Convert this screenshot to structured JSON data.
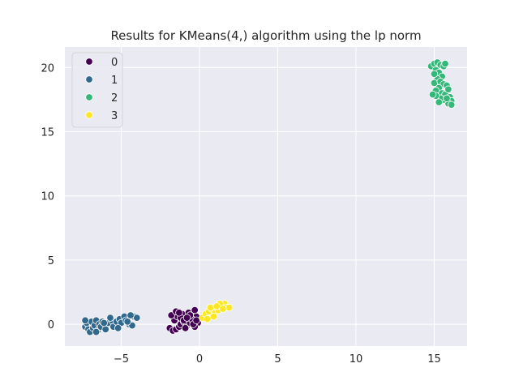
{
  "chart_data": {
    "type": "scatter",
    "title": "Results for KMeans(4,) algorithm using the lp norm",
    "xlabel": "",
    "ylabel": "",
    "xlim": [
      -8.6,
      17.1
    ],
    "ylim": [
      -1.7,
      21.6
    ],
    "xticks": [
      -5,
      0,
      5,
      10,
      15
    ],
    "yticks": [
      0,
      5,
      10,
      15,
      20
    ],
    "xtick_labels": [
      "−5",
      "0",
      "5",
      "10",
      "15"
    ],
    "ytick_labels": [
      "0",
      "5",
      "10",
      "15",
      "20"
    ],
    "grid": true,
    "legend_position": "top-left",
    "series": [
      {
        "name": "0",
        "color": "#440154",
        "points": [
          [
            -1.9,
            -0.3
          ],
          [
            -1.7,
            -0.5
          ],
          [
            -1.5,
            -0.4
          ],
          [
            -1.3,
            -0.2
          ],
          [
            -1.2,
            0.0
          ],
          [
            -1.0,
            0.2
          ],
          [
            -0.8,
            -0.1
          ],
          [
            -0.6,
            0.1
          ],
          [
            -0.4,
            0.3
          ],
          [
            -0.2,
            0.6
          ],
          [
            -0.1,
            0.1
          ],
          [
            -0.3,
            -0.2
          ],
          [
            -0.9,
            -0.3
          ],
          [
            -1.6,
            0.3
          ],
          [
            -1.4,
            0.6
          ],
          [
            -1.1,
            0.8
          ],
          [
            -0.7,
            0.9
          ],
          [
            -0.5,
            0.4
          ],
          [
            -1.8,
            0.7
          ],
          [
            -1.2,
            0.5
          ],
          [
            -0.3,
            1.1
          ],
          [
            -0.6,
            0.7
          ],
          [
            -1.0,
            0.3
          ],
          [
            -0.8,
            0.5
          ],
          [
            -1.5,
            1.0
          ],
          [
            -1.3,
            0.9
          ],
          [
            -0.4,
            0.0
          ],
          [
            -0.2,
            0.3
          ]
        ]
      },
      {
        "name": "1",
        "color": "#31688e",
        "points": [
          [
            -7.3,
            -0.2
          ],
          [
            -7.2,
            0.1
          ],
          [
            -7.1,
            -0.4
          ],
          [
            -7.0,
            -0.6
          ],
          [
            -6.9,
            0.2
          ],
          [
            -6.8,
            -0.3
          ],
          [
            -6.7,
            -0.1
          ],
          [
            -6.6,
            0.3
          ],
          [
            -6.5,
            -0.5
          ],
          [
            -6.4,
            0.0
          ],
          [
            -6.3,
            -0.2
          ],
          [
            -6.2,
            0.2
          ],
          [
            -6.0,
            -0.4
          ],
          [
            -5.8,
            0.1
          ],
          [
            -5.6,
            0.3
          ],
          [
            -5.5,
            -0.2
          ],
          [
            -5.3,
            0.2
          ],
          [
            -5.1,
            0.4
          ],
          [
            -5.0,
            0.1
          ],
          [
            -4.8,
            0.6
          ],
          [
            -4.7,
            0.3
          ],
          [
            -4.5,
            0.0
          ],
          [
            -4.3,
            -0.1
          ],
          [
            -4.2,
            0.6
          ],
          [
            -4.0,
            0.5
          ],
          [
            -4.4,
            0.7
          ],
          [
            -5.7,
            0.5
          ],
          [
            -6.1,
            0.1
          ],
          [
            -7.3,
            0.3
          ],
          [
            -6.6,
            -0.6
          ],
          [
            -5.2,
            -0.3
          ],
          [
            -4.6,
            0.2
          ]
        ]
      },
      {
        "name": "2",
        "color": "#35b779",
        "points": [
          [
            14.8,
            20.1
          ],
          [
            15.0,
            20.3
          ],
          [
            15.2,
            20.4
          ],
          [
            15.4,
            20.2
          ],
          [
            15.6,
            20.1
          ],
          [
            15.1,
            19.8
          ],
          [
            15.3,
            19.6
          ],
          [
            15.5,
            19.3
          ],
          [
            15.2,
            19.1
          ],
          [
            15.0,
            18.8
          ],
          [
            15.4,
            18.9
          ],
          [
            15.6,
            18.7
          ],
          [
            15.8,
            18.6
          ],
          [
            15.3,
            18.4
          ],
          [
            15.1,
            18.2
          ],
          [
            15.5,
            18.0
          ],
          [
            15.7,
            17.9
          ],
          [
            15.9,
            18.3
          ],
          [
            16.0,
            17.7
          ],
          [
            16.1,
            17.4
          ],
          [
            15.9,
            17.2
          ],
          [
            16.1,
            17.1
          ],
          [
            15.6,
            17.5
          ],
          [
            15.4,
            17.6
          ],
          [
            15.1,
            17.8
          ],
          [
            14.9,
            17.9
          ],
          [
            15.3,
            17.3
          ],
          [
            15.8,
            17.6
          ],
          [
            15.0,
            19.5
          ],
          [
            15.7,
            20.3
          ]
        ]
      },
      {
        "name": "3",
        "color": "#fde725",
        "points": [
          [
            0.2,
            0.5
          ],
          [
            0.4,
            0.8
          ],
          [
            0.6,
            1.0
          ],
          [
            0.8,
            1.2
          ],
          [
            1.0,
            0.9
          ],
          [
            1.2,
            1.1
          ],
          [
            1.4,
            1.4
          ],
          [
            1.6,
            1.6
          ],
          [
            1.7,
            1.3
          ],
          [
            1.9,
            1.3
          ],
          [
            0.9,
            0.6
          ],
          [
            0.5,
            0.4
          ],
          [
            0.7,
            1.3
          ],
          [
            1.3,
            1.6
          ],
          [
            1.5,
            1.2
          ],
          [
            1.1,
            1.4
          ]
        ]
      }
    ]
  }
}
